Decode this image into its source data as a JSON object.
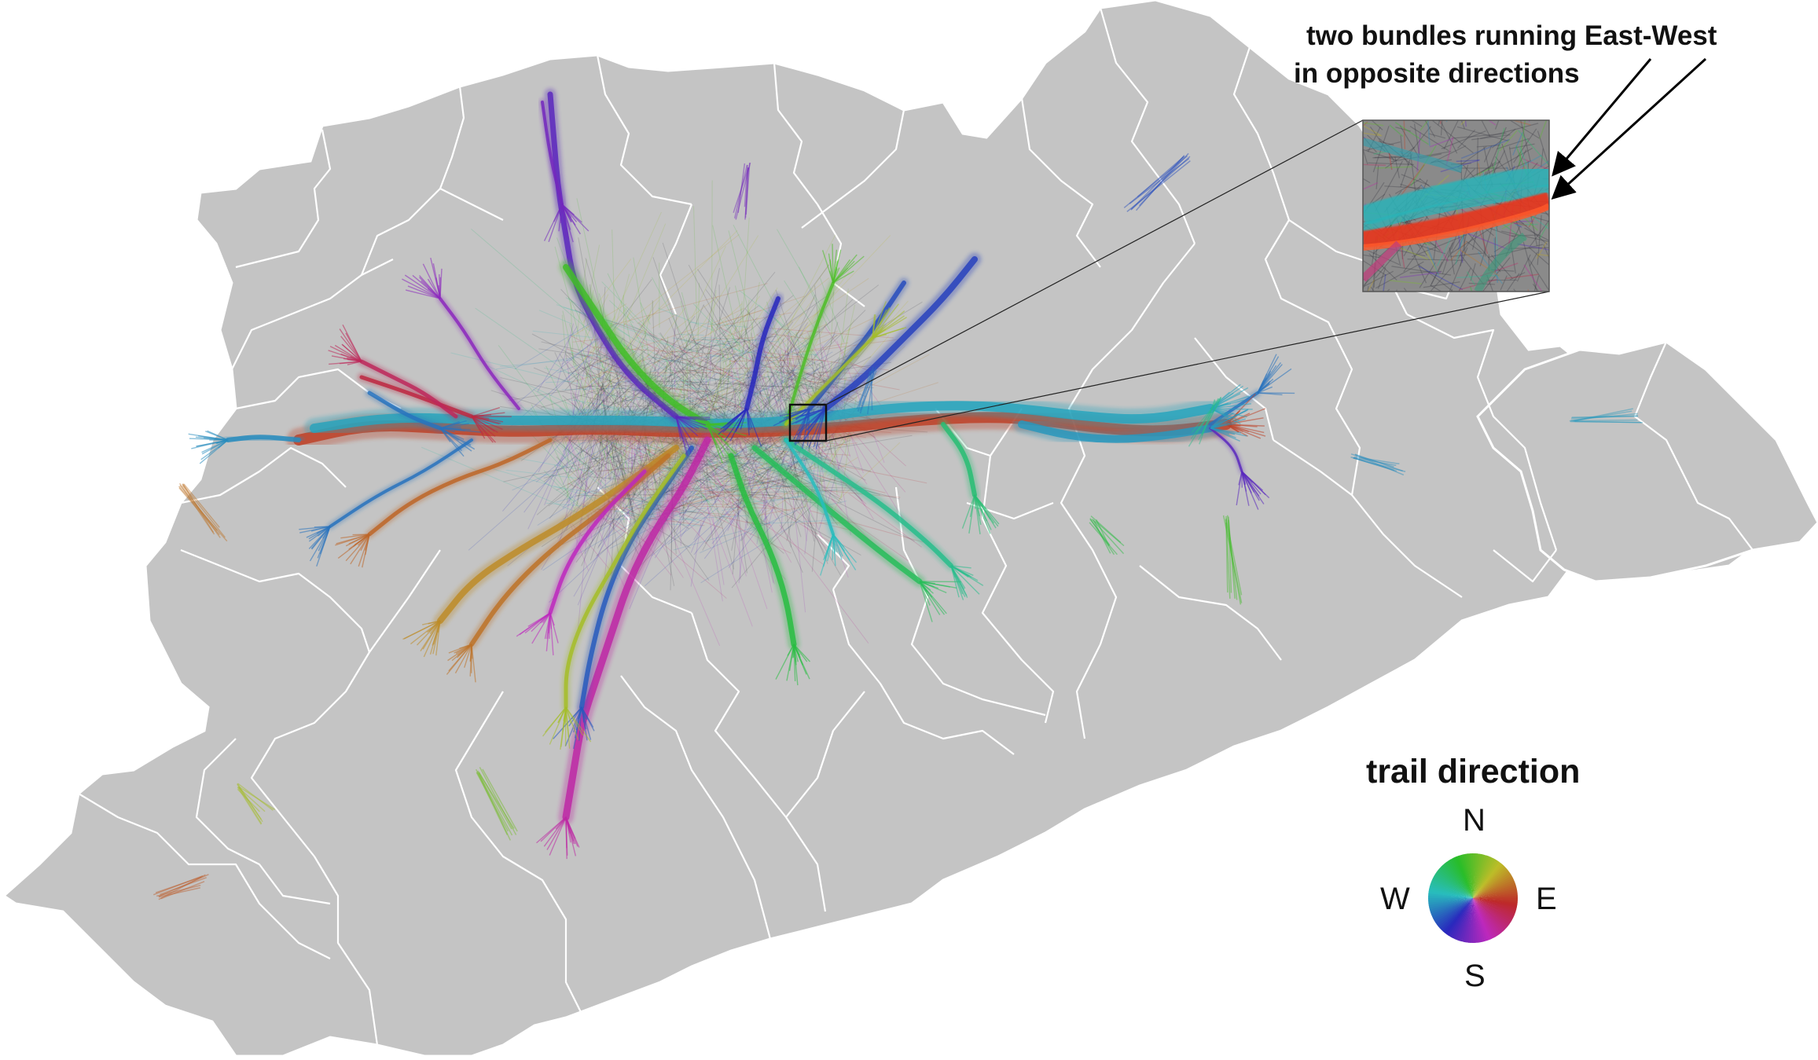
{
  "annotation": {
    "line1": "two bundles running East-West",
    "line2": "in opposite directions"
  },
  "legend": {
    "title": "trail direction",
    "north": "N",
    "south": "S",
    "east": "E",
    "west": "W"
  },
  "colors": {
    "region_fill": "#c4c4c4",
    "region_border": "#ffffff",
    "bundle_east": "#e8341f",
    "bundle_west": "#2ab3b8",
    "bundle_north": "#7a3aa8",
    "bundle_south": "#3a9a4a",
    "bundle_northeast": "#2f5fb8",
    "bundle_southwest": "#c86a2a"
  }
}
